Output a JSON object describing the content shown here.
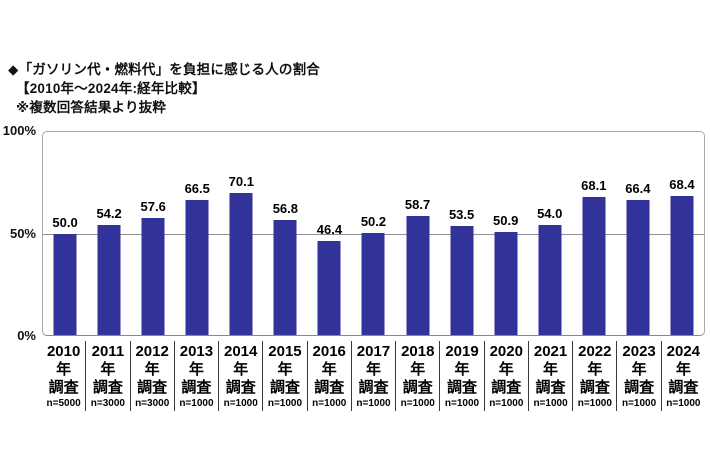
{
  "header": {
    "title": "◆「ガソリン代・燃料代」を負担に感じる人の割合",
    "subtitle": "【2010年～2024年:経年比較】",
    "note": "※複数回答結果より抜粋"
  },
  "chart_data": {
    "type": "bar",
    "title": "「ガソリン代・燃料代」を負担に感じる人の割合(2010年～2024年:経年比較)",
    "categories": [
      "2010年調査",
      "2011年調査",
      "2012年調査",
      "2013年調査",
      "2014年調査",
      "2015年調査",
      "2016年調査",
      "2017年調査",
      "2018年調査",
      "2019年調査",
      "2020年調査",
      "2021年調査",
      "2022年調査",
      "2023年調査",
      "2024年調査"
    ],
    "sample_sizes": [
      "n=5000",
      "n=3000",
      "n=3000",
      "n=1000",
      "n=1000",
      "n=1000",
      "n=1000",
      "n=1000",
      "n=1000",
      "n=1000",
      "n=1000",
      "n=1000",
      "n=1000",
      "n=1000",
      "n=1000"
    ],
    "values": [
      50.0,
      54.2,
      57.6,
      66.5,
      70.1,
      56.8,
      46.4,
      50.2,
      58.7,
      53.5,
      50.9,
      54.0,
      68.1,
      66.4,
      68.4
    ],
    "unit": "%",
    "xlabel": "",
    "ylabel": "",
    "ylim": [
      0,
      100
    ],
    "yticks": [
      {
        "label": "100%",
        "value": 100
      },
      {
        "label": "50%",
        "value": 50
      },
      {
        "label": "0%",
        "value": 0
      }
    ],
    "grid": "horizontal line at 50% only",
    "legend": "none",
    "bar_color": "#32329B"
  }
}
